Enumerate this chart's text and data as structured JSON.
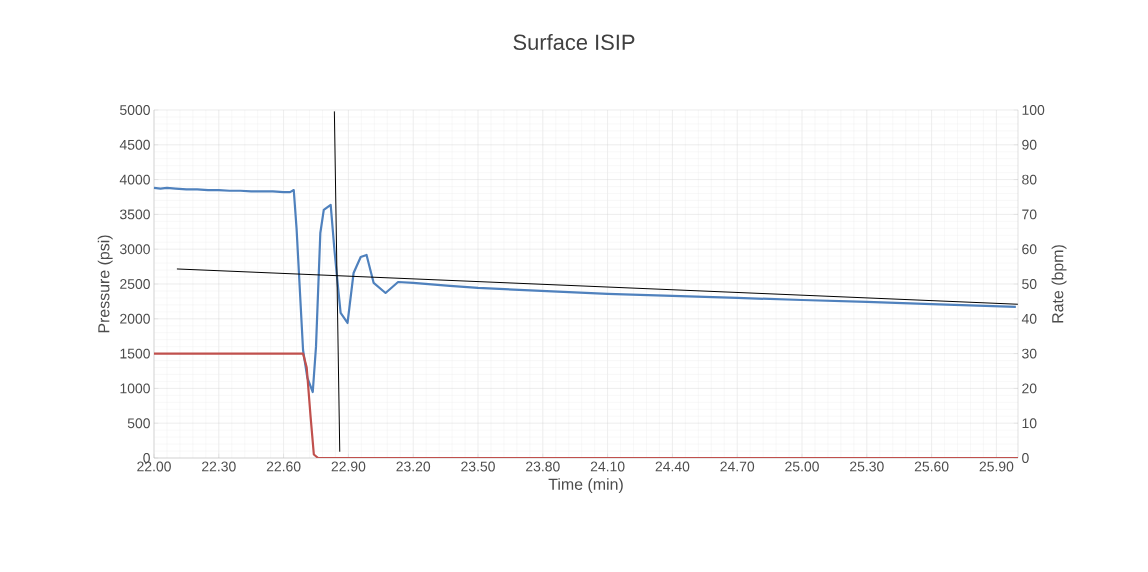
{
  "chart_data": {
    "type": "line",
    "title": "Surface ISIP",
    "xlabel": "Time (min)",
    "ylabel": "Pressure (psi)",
    "y2label": "Rate (bpm)",
    "xlim": [
      22,
      26
    ],
    "ylim": [
      0,
      5000
    ],
    "y2lim": [
      0,
      100
    ],
    "xticks": [
      {
        "value": 22,
        "label": "22.00"
      },
      {
        "value": 22.3,
        "label": "22.30"
      },
      {
        "value": 22.6,
        "label": "22.60"
      },
      {
        "value": 22.9,
        "label": "22.90"
      },
      {
        "value": 23.2,
        "label": "23.20"
      },
      {
        "value": 23.5,
        "label": "23.50"
      },
      {
        "value": 23.8,
        "label": "23.80"
      },
      {
        "value": 24.1,
        "label": "24.10"
      },
      {
        "value": 24.4,
        "label": "24.40"
      },
      {
        "value": 24.7,
        "label": "24.70"
      },
      {
        "value": 25,
        "label": "25.00"
      },
      {
        "value": 25.3,
        "label": "25.30"
      },
      {
        "value": 25.6,
        "label": "25.60"
      },
      {
        "value": 25.9,
        "label": "25.90"
      }
    ],
    "yticks": [
      0,
      500,
      1000,
      1500,
      2000,
      2500,
      3000,
      3500,
      4000,
      4500,
      5000
    ],
    "y2ticks": [
      0,
      10,
      20,
      30,
      40,
      50,
      60,
      70,
      80,
      90,
      100
    ],
    "grid": true,
    "marker": "none",
    "line_style": "solid",
    "series": [
      {
        "color": "#4f81bd",
        "x": [
          22.0,
          22.03,
          22.06,
          22.1,
          22.15,
          22.2,
          22.25,
          22.3,
          22.35,
          22.4,
          22.45,
          22.5,
          22.55,
          22.6,
          22.63,
          22.647,
          22.66,
          22.69,
          22.71,
          22.735,
          22.75,
          22.77,
          22.786,
          22.818,
          22.835,
          22.85,
          22.864,
          22.896,
          22.924,
          22.957,
          22.984,
          23.017,
          23.072,
          23.13,
          23.2,
          23.37,
          23.5,
          23.8,
          24.1,
          24.4,
          24.7,
          25.0,
          25.3,
          25.6,
          25.99
        ],
        "values": [
          3880,
          3870,
          3880,
          3870,
          3860,
          3860,
          3850,
          3850,
          3840,
          3840,
          3830,
          3830,
          3830,
          3820,
          3820,
          3850,
          3300,
          1552,
          1150,
          948,
          1600,
          3233,
          3564,
          3636,
          3000,
          2515,
          2084,
          1940,
          2658,
          2888,
          2917,
          2515,
          2371,
          2529,
          2515,
          2472,
          2443,
          2400,
          2357,
          2330,
          2300,
          2270,
          2242,
          2210,
          2170
        ]
      },
      {
        "color": "#c0504d",
        "axis": "y2",
        "x": [
          22.0,
          22.69,
          22.707,
          22.725,
          22.74,
          22.76,
          26.0
        ],
        "values": [
          30,
          30,
          26,
          11.8,
          1,
          0,
          0
        ]
      },
      {
        "color": "#000000",
        "x": [
          22.106,
          26.0
        ],
        "values": [
          2716,
          2209
        ]
      },
      {
        "color": "#000000",
        "x": [
          22.835,
          22.86
        ],
        "values": [
          4980,
          90
        ]
      }
    ]
  }
}
